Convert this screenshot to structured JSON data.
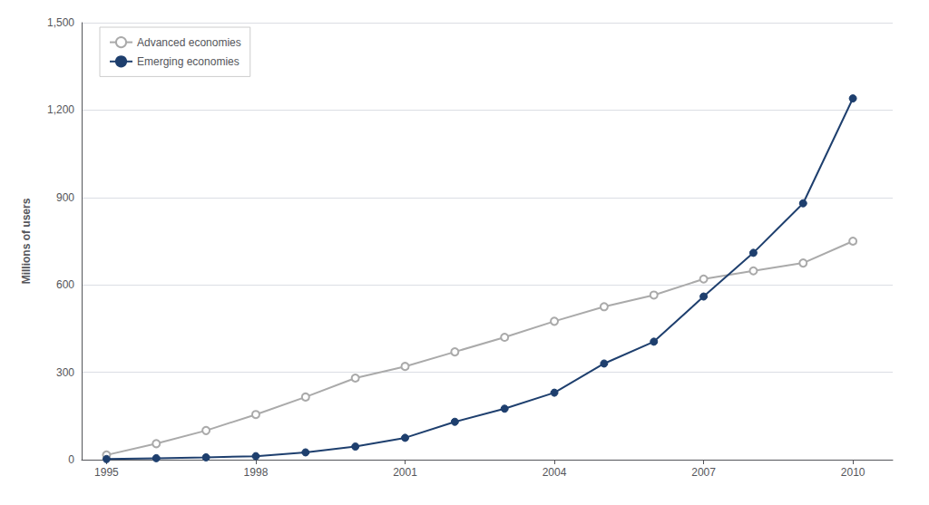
{
  "chart_data": {
    "type": "line",
    "ylabel": "Millions of users",
    "x": [
      1995,
      1996,
      1997,
      1998,
      1999,
      2000,
      2001,
      2002,
      2003,
      2004,
      2005,
      2006,
      2007,
      2008,
      2009,
      2010
    ],
    "series": [
      {
        "name": "Advanced economies",
        "color": "#aaaaaa",
        "marker": "open_circle",
        "values": [
          16,
          55,
          100,
          155,
          215,
          280,
          320,
          370,
          420,
          475,
          525,
          565,
          620,
          648,
          675,
          750
        ]
      },
      {
        "name": "Emerging economies",
        "color": "#1e3f6e",
        "marker": "circle",
        "values": [
          2,
          5,
          8,
          12,
          25,
          45,
          75,
          130,
          175,
          230,
          330,
          405,
          560,
          710,
          880,
          1240
        ]
      }
    ],
    "xlim": [
      1994.5,
      2010.8
    ],
    "xticks": [
      1995,
      1998,
      2001,
      2004,
      2007,
      2010
    ],
    "ylim": [
      0,
      1500
    ],
    "yticks": [
      0,
      300,
      600,
      900,
      {
        "value": 1200,
        "label": "1,200"
      },
      {
        "value": 1500,
        "label": "1,500"
      }
    ],
    "grid": true,
    "legend": "upper left"
  }
}
